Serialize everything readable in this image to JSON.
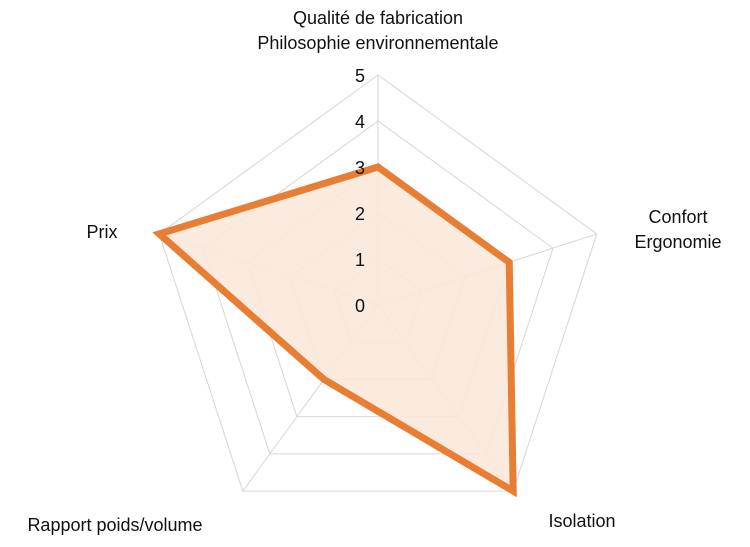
{
  "chart_data": {
    "type": "radar",
    "title": "",
    "axes": [
      {
        "label_lines": [
          "Qualité de fabrication",
          "Philosophie environnementale"
        ]
      },
      {
        "label_lines": [
          "Confort",
          "Ergonomie"
        ]
      },
      {
        "label_lines": [
          "Isolation"
        ]
      },
      {
        "label_lines": [
          "Rapport poids/volume"
        ]
      },
      {
        "label_lines": [
          "Prix"
        ]
      }
    ],
    "range": [
      0,
      5
    ],
    "ticks": [
      "0",
      "1",
      "2",
      "3",
      "4",
      "5"
    ],
    "grid": true,
    "legend": "none",
    "series": [
      {
        "values": [
          3,
          3,
          5,
          2,
          5
        ],
        "color": "#e87d34",
        "fill": "#fbe8da"
      }
    ],
    "colors": {
      "grid": "#d6d6d6",
      "text": "#111111"
    }
  }
}
